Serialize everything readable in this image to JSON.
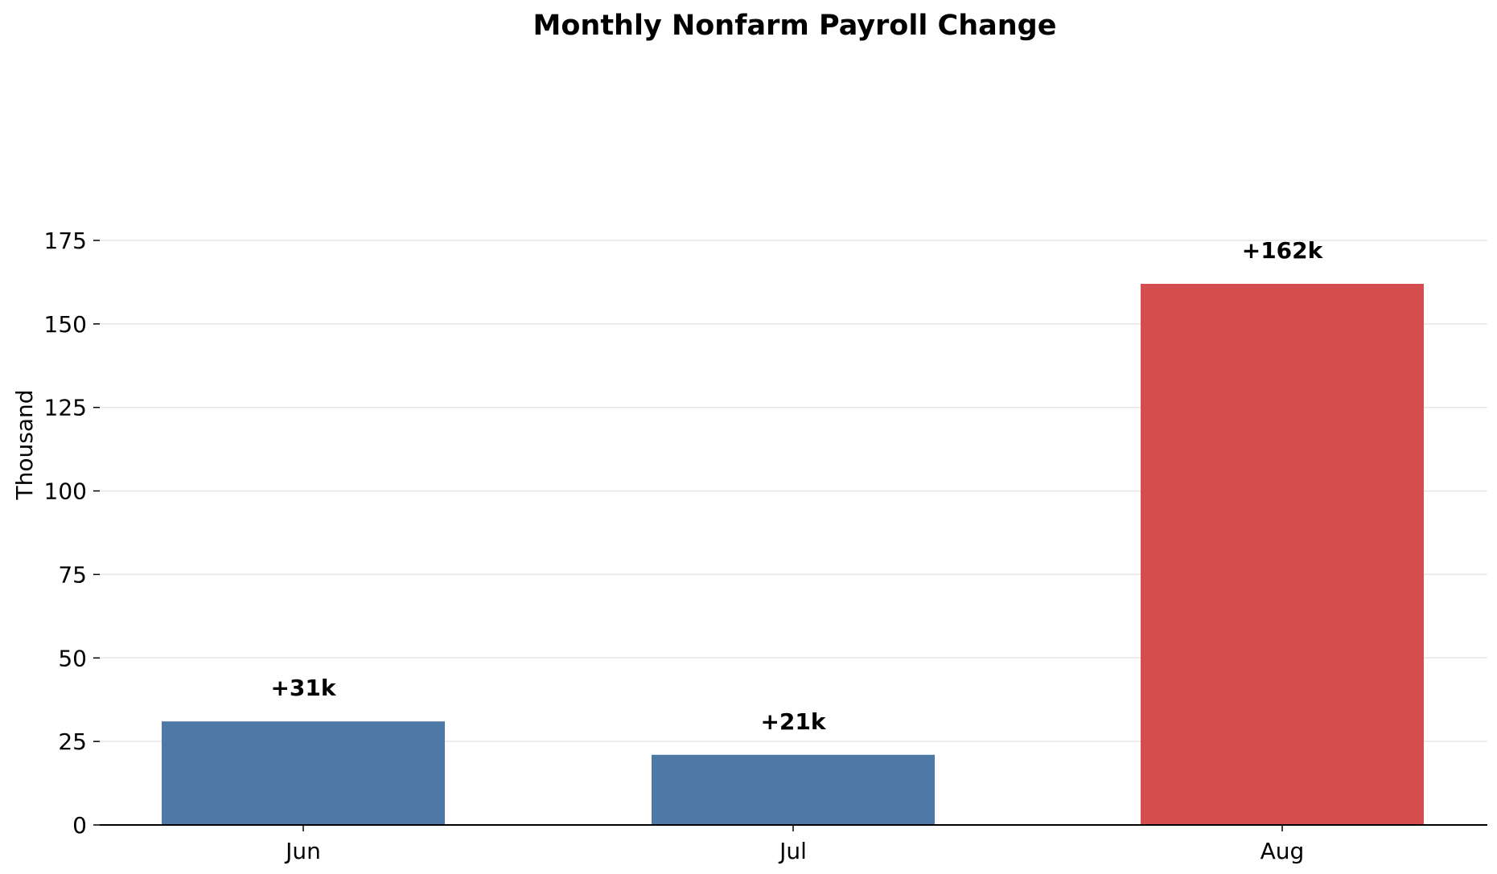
{
  "chart_data": {
    "type": "bar",
    "title": "Monthly Nonfarm Payroll Change",
    "xlabel": "",
    "ylabel": "Thousand",
    "categories": [
      "Jun",
      "Jul",
      "Aug"
    ],
    "values": [
      31,
      21,
      162
    ],
    "data_labels": [
      "+31k",
      "+21k",
      "+162k"
    ],
    "bar_colors": [
      "#4e79a7",
      "#4e79a7",
      "#d64d4f"
    ],
    "ylim": [
      0,
      185
    ],
    "yticks": [
      0,
      25,
      50,
      75,
      100,
      125,
      150,
      175
    ],
    "grid": "horizontal",
    "legend": "none"
  },
  "colors": {
    "default_bar": "#4e79a7",
    "highlight_bar": "#d64d4f",
    "grid": "#e6e6e6",
    "axis": "#000000"
  }
}
